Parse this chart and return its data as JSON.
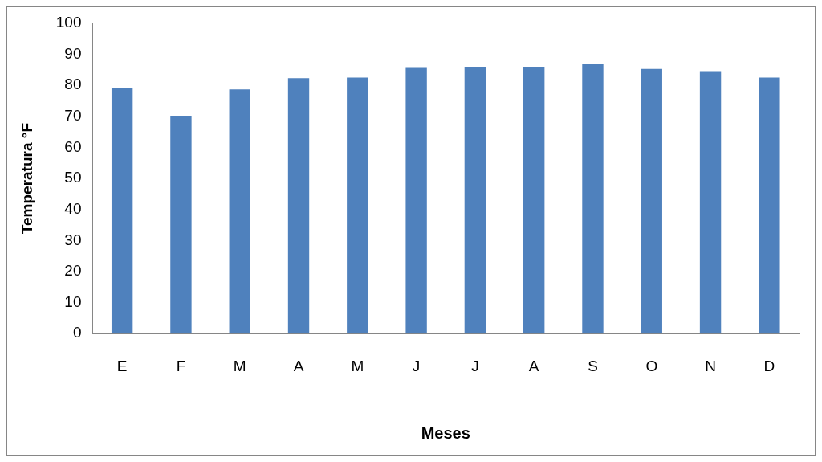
{
  "chart_data": {
    "type": "bar",
    "xlabel": "Meses",
    "ylabel": "Temperatura °F",
    "categories": [
      "E",
      "F",
      "M",
      "A",
      "M",
      "J",
      "J",
      "A",
      "S",
      "O",
      "N",
      "D"
    ],
    "values": [
      79.2,
      70.2,
      78.7,
      82.3,
      82.5,
      85.6,
      86.0,
      86.0,
      86.8,
      85.3,
      84.6,
      82.5
    ],
    "color": "#4f81bd",
    "ylim": [
      0,
      100
    ],
    "yticks": [
      0,
      10,
      20,
      30,
      40,
      50,
      60,
      70,
      80,
      90,
      100
    ],
    "grid": false,
    "legend": false
  }
}
